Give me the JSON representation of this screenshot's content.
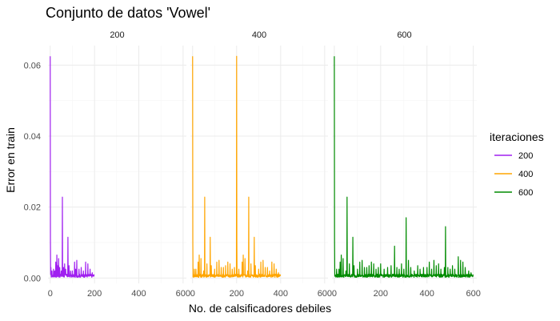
{
  "chart_data": {
    "type": "line",
    "title": "Conjunto de datos 'Vowel'",
    "xlabel": "No. de calsificadores debiles",
    "ylabel": "Error en train",
    "xlim": [
      -10,
      615
    ],
    "ylim": [
      -0.0015,
      0.0655
    ],
    "x_ticks": [
      0,
      200,
      400,
      600
    ],
    "y_ticks": [
      0.0,
      0.02,
      0.04,
      0.06
    ],
    "y_tick_labels": [
      "0.00",
      "0.02",
      "0.04",
      "0.06"
    ],
    "grid": true,
    "legend": {
      "title": "iteraciones",
      "position": "right"
    },
    "panels": [
      {
        "label": "200",
        "series": {
          "name": "200",
          "color": "#a020f0",
          "n": 200,
          "spikes": [
            [
              0,
              0.0625
            ],
            [
              1,
              0.0105
            ],
            [
              3,
              0.003
            ],
            [
              8,
              0.002
            ],
            [
              15,
              0.0025
            ],
            [
              20,
              0.002
            ],
            [
              25,
              0.0045
            ],
            [
              30,
              0.0065
            ],
            [
              33,
              0.0035
            ],
            [
              38,
              0.0055
            ],
            [
              43,
              0.003
            ],
            [
              50,
              0.002
            ],
            [
              55,
              0.0228
            ],
            [
              60,
              0.003
            ],
            [
              65,
              0.004
            ],
            [
              70,
              0.0025
            ],
            [
              80,
              0.0115
            ],
            [
              85,
              0.0035
            ],
            [
              92,
              0.002
            ],
            [
              100,
              0.002
            ],
            [
              110,
              0.0045
            ],
            [
              115,
              0.0025
            ],
            [
              120,
              0.005
            ],
            [
              130,
              0.0025
            ],
            [
              140,
              0.003
            ],
            [
              150,
              0.002
            ],
            [
              160,
              0.0045
            ],
            [
              170,
              0.004
            ],
            [
              180,
              0.0025
            ],
            [
              190,
              0.0015
            ],
            [
              199,
              0.001
            ]
          ]
        }
      },
      {
        "label": "400",
        "series": {
          "name": "400",
          "color": "#ffa500",
          "n": 400,
          "spikes": [
            [
              0,
              0.0625
            ],
            [
              1,
              0.0105
            ],
            [
              8,
              0.0025
            ],
            [
              15,
              0.0025
            ],
            [
              25,
              0.0045
            ],
            [
              30,
              0.0065
            ],
            [
              38,
              0.0055
            ],
            [
              50,
              0.002
            ],
            [
              55,
              0.0228
            ],
            [
              65,
              0.004
            ],
            [
              80,
              0.0115
            ],
            [
              85,
              0.0035
            ],
            [
              100,
              0.0025
            ],
            [
              110,
              0.0045
            ],
            [
              120,
              0.005
            ],
            [
              130,
              0.003
            ],
            [
              140,
              0.003
            ],
            [
              150,
              0.0035
            ],
            [
              160,
              0.0045
            ],
            [
              170,
              0.004
            ],
            [
              180,
              0.0025
            ],
            [
              190,
              0.003
            ],
            [
              200,
              0.0625
            ],
            [
              201,
              0.0105
            ],
            [
              210,
              0.0025
            ],
            [
              225,
              0.0045
            ],
            [
              230,
              0.0065
            ],
            [
              238,
              0.0055
            ],
            [
              250,
              0.002
            ],
            [
              255,
              0.0228
            ],
            [
              265,
              0.004
            ],
            [
              280,
              0.0115
            ],
            [
              285,
              0.0035
            ],
            [
              300,
              0.0025
            ],
            [
              310,
              0.0045
            ],
            [
              320,
              0.005
            ],
            [
              330,
              0.003
            ],
            [
              340,
              0.003
            ],
            [
              350,
              0.002
            ],
            [
              360,
              0.0045
            ],
            [
              370,
              0.004
            ],
            [
              380,
              0.0025
            ],
            [
              390,
              0.0015
            ],
            [
              399,
              0.001
            ]
          ]
        }
      },
      {
        "label": "600",
        "series": {
          "name": "600",
          "color": "#008b00",
          "n": 600,
          "spikes": [
            [
              0,
              0.0625
            ],
            [
              1,
              0.0105
            ],
            [
              10,
              0.0025
            ],
            [
              20,
              0.0025
            ],
            [
              25,
              0.0045
            ],
            [
              30,
              0.0065
            ],
            [
              38,
              0.0055
            ],
            [
              50,
              0.002
            ],
            [
              55,
              0.0228
            ],
            [
              65,
              0.004
            ],
            [
              80,
              0.0115
            ],
            [
              85,
              0.0035
            ],
            [
              100,
              0.0025
            ],
            [
              110,
              0.0045
            ],
            [
              120,
              0.005
            ],
            [
              130,
              0.003
            ],
            [
              140,
              0.003
            ],
            [
              150,
              0.0035
            ],
            [
              160,
              0.0045
            ],
            [
              170,
              0.004
            ],
            [
              180,
              0.0025
            ],
            [
              190,
              0.003
            ],
            [
              200,
              0.004
            ],
            [
              215,
              0.0025
            ],
            [
              230,
              0.003
            ],
            [
              245,
              0.0035
            ],
            [
              260,
              0.009
            ],
            [
              270,
              0.003
            ],
            [
              280,
              0.0025
            ],
            [
              290,
              0.004
            ],
            [
              300,
              0.0025
            ],
            [
              310,
              0.017
            ],
            [
              320,
              0.005
            ],
            [
              330,
              0.003
            ],
            [
              345,
              0.002
            ],
            [
              360,
              0.0035
            ],
            [
              370,
              0.0025
            ],
            [
              385,
              0.003
            ],
            [
              400,
              0.003
            ],
            [
              410,
              0.0045
            ],
            [
              420,
              0.0025
            ],
            [
              430,
              0.005
            ],
            [
              440,
              0.0035
            ],
            [
              450,
              0.004
            ],
            [
              460,
              0.0025
            ],
            [
              475,
              0.003
            ],
            [
              480,
              0.0145
            ],
            [
              490,
              0.003
            ],
            [
              500,
              0.0025
            ],
            [
              510,
              0.0035
            ],
            [
              520,
              0.0025
            ],
            [
              535,
              0.006
            ],
            [
              545,
              0.005
            ],
            [
              555,
              0.0045
            ],
            [
              565,
              0.003
            ],
            [
              580,
              0.002
            ],
            [
              590,
              0.0015
            ],
            [
              599,
              0.001
            ]
          ]
        }
      }
    ]
  }
}
